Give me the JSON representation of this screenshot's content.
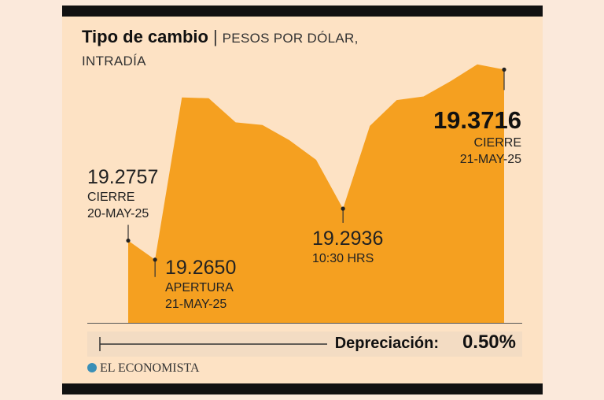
{
  "header": {
    "title": "Tipo de cambio",
    "subtitle_part1": "PESOS POR DÓLAR,",
    "subtitle_part2": "INTRADÍA"
  },
  "chart_data": {
    "type": "area",
    "title": "Tipo de cambio",
    "subtitle": "PESOS POR DÓLAR, INTRADÍA",
    "series": [
      {
        "values": [
          19.2757,
          19.265,
          19.356,
          19.3555,
          19.342,
          19.3405,
          19.332,
          19.321,
          19.2936,
          19.34,
          19.3545,
          19.3565,
          19.365,
          19.3745,
          19.3716
        ]
      }
    ],
    "ylim": [
      19.25,
      19.385
    ],
    "color": "#f5a020",
    "annotations": [
      {
        "value": "19.2757",
        "line1": "CIERRE",
        "line2": "20-MAY-25"
      },
      {
        "value": "19.2650",
        "line1": "APERTURA",
        "line2": "21-MAY-25"
      },
      {
        "value": "19.2936",
        "line1": "10:30 HRS"
      },
      {
        "value": "19.3716",
        "line1": "CIERRE",
        "line2": "21-MAY-25"
      }
    ]
  },
  "footer": {
    "depreciation_label": "Depreciación:",
    "depreciation_value": "0.50%",
    "brand": "EL ECONOMISTA"
  },
  "colors": {
    "background": "#fde2c4",
    "area": "#f5a020",
    "frame": "#111111"
  }
}
